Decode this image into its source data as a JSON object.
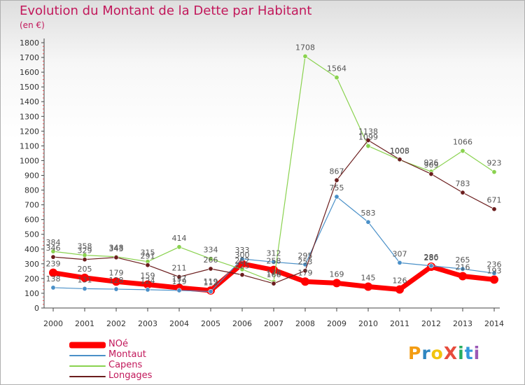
{
  "header": {
    "title": "Evolution du Montant de la Dette par Habitant",
    "unit": "(en €)"
  },
  "logo": {
    "text": "ProXiti",
    "colors": [
      "#f39c12",
      "#2e86c1",
      "#f1c40f",
      "#e74c3c",
      "#27ae60",
      "#3498db",
      "#9b59b6"
    ]
  },
  "chart_data": {
    "type": "line",
    "x": [
      "2000",
      "2001",
      "2002",
      "2003",
      "2004",
      "2005",
      "2006",
      "2007",
      "2008",
      "2009",
      "2010",
      "2011",
      "2012",
      "2013",
      "2014"
    ],
    "ylim": [
      0,
      1800
    ],
    "yticks": [
      0,
      100,
      200,
      300,
      400,
      500,
      600,
      700,
      800,
      900,
      1000,
      1100,
      1200,
      1300,
      1400,
      1500,
      1600,
      1700,
      1800
    ],
    "grid": false,
    "legend_position": "bottom-left",
    "series": [
      {
        "name": "NOé",
        "color": "#ff0000",
        "width": 7,
        "values": [
          239,
          205,
          179,
          159,
          137,
          119,
          300,
          258,
          179,
          169,
          145,
          126,
          280,
          216,
          193
        ]
      },
      {
        "name": "Montaut",
        "color": "#4a90c8",
        "width": 1.2,
        "values": [
          138,
          131,
          128,
          124,
          119,
          112,
          333,
          312,
          295,
          755,
          583,
          307,
          286,
          265,
          236
        ]
      },
      {
        "name": "Capens",
        "color": "#8ad24f",
        "width": 1.2,
        "values": [
          384,
          358,
          348,
          315,
          414,
          334,
          262,
          178,
          1708,
          1564,
          1099,
          1005,
          926,
          1066,
          923
        ]
      },
      {
        "name": "Longages",
        "color": "#6b1d1d",
        "width": 1.2,
        "values": [
          346,
          329,
          343,
          291,
          211,
          266,
          225,
          166,
          253,
          867,
          1138,
          1008,
          909,
          783,
          671
        ]
      }
    ]
  }
}
